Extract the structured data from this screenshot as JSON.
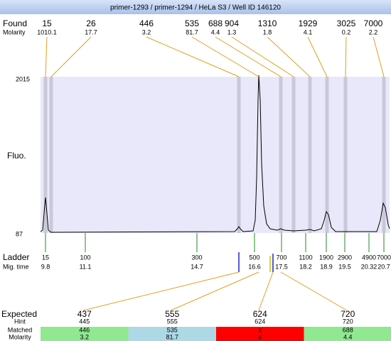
{
  "header": {
    "title": "primer-1293 / primer-1294 / HeLa S3 / Well ID 146120"
  },
  "found": {
    "label": "Found",
    "molarity_label": "Molarity",
    "peaks": [
      {
        "size": "15",
        "molarity": "1010.1"
      },
      {
        "size": "26",
        "molarity": "17.7"
      },
      {
        "size": "446",
        "molarity": "3.2"
      },
      {
        "size": "535",
        "molarity": "81.7"
      },
      {
        "size": "688",
        "molarity": "4.4"
      },
      {
        "size": "904",
        "molarity": "1.3"
      },
      {
        "size": "1310",
        "molarity": "1.8"
      },
      {
        "size": "1929",
        "molarity": "4.1"
      },
      {
        "size": "3025",
        "molarity": "0.2"
      },
      {
        "size": "7000",
        "molarity": "2.2"
      }
    ]
  },
  "plot": {
    "y_label": "Fluo.",
    "y_max": "2015",
    "y_min": "87"
  },
  "ladder": {
    "label": "Ladder",
    "time_label": "Mig. time",
    "bands": [
      {
        "size": "15",
        "time": "9.8"
      },
      {
        "size": "100",
        "time": "11.1"
      },
      {
        "size": "300",
        "time": "14.7"
      },
      {
        "size": "500",
        "time": "16.6"
      },
      {
        "size": "700",
        "time": "17.5"
      },
      {
        "size": "1100",
        "time": "18.2"
      },
      {
        "size": "1900",
        "time": "18.9"
      },
      {
        "size": "2900",
        "time": "19.5"
      },
      {
        "size": "4900",
        "time": "20.32"
      },
      {
        "size": "7000",
        "time": "20.7"
      }
    ]
  },
  "table": {
    "row_labels": [
      "Expected",
      "Hint",
      "Matched",
      "Molarity"
    ],
    "columns": [
      {
        "expected": "437",
        "hint": "445",
        "matched": "446",
        "molarity": "3.2"
      },
      {
        "expected": "555",
        "hint": "555",
        "matched": "535",
        "molarity": "81.7"
      },
      {
        "expected": "624",
        "hint": "624",
        "matched": "x",
        "molarity": "x"
      },
      {
        "expected": "720",
        "hint": "720",
        "matched": "688",
        "molarity": "4.4"
      }
    ]
  }
}
